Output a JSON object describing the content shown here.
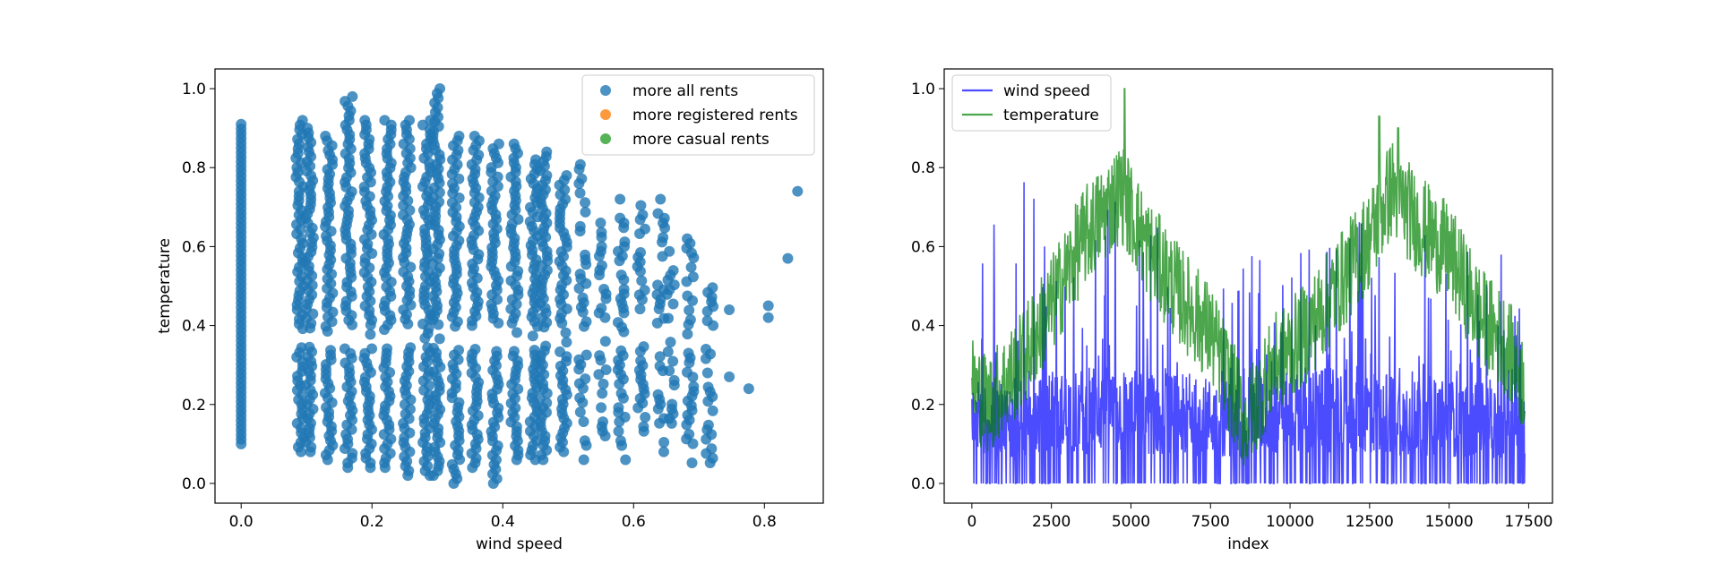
{
  "chart_data": [
    {
      "type": "scatter",
      "title": "",
      "xlabel": "wind speed",
      "ylabel": "temperature",
      "xlim": [
        -0.04,
        0.89
      ],
      "ylim": [
        -0.05,
        1.05
      ],
      "xticks": [
        "0.0",
        "0.2",
        "0.4",
        "0.6",
        "0.8"
      ],
      "yticks": [
        "0.0",
        "0.2",
        "0.4",
        "0.6",
        "0.8",
        "1.0"
      ],
      "legend_position": "top-right",
      "grid": false,
      "series": [
        {
          "name": "more all rents",
          "color": "#1f77b4",
          "columns": [
            {
              "x": 0.0,
              "ymin": 0.1,
              "ymax": 0.91
            },
            {
              "x": 0.0896,
              "ymin": 0.08,
              "ymax": 0.92
            },
            {
              "x": 0.1045,
              "ymin": 0.08,
              "ymax": 0.9
            },
            {
              "x": 0.1343,
              "ymin": 0.06,
              "ymax": 0.88
            },
            {
              "x": 0.1642,
              "ymin": 0.04,
              "ymax": 0.98
            },
            {
              "x": 0.194,
              "ymin": 0.04,
              "ymax": 0.92
            },
            {
              "x": 0.2239,
              "ymin": 0.04,
              "ymax": 0.92
            },
            {
              "x": 0.2537,
              "ymin": 0.02,
              "ymax": 0.92
            },
            {
              "x": 0.2836,
              "ymin": 0.02,
              "ymax": 0.92
            },
            {
              "x": 0.2985,
              "ymin": 0.02,
              "ymax": 1.0
            },
            {
              "x": 0.3284,
              "ymin": 0.0,
              "ymax": 0.88
            },
            {
              "x": 0.3582,
              "ymin": 0.04,
              "ymax": 0.88
            },
            {
              "x": 0.3881,
              "ymin": 0.0,
              "ymax": 0.86
            },
            {
              "x": 0.4179,
              "ymin": 0.06,
              "ymax": 0.86
            },
            {
              "x": 0.4478,
              "ymin": 0.06,
              "ymax": 0.82
            },
            {
              "x": 0.4627,
              "ymin": 0.06,
              "ymax": 0.84
            },
            {
              "x": 0.4925,
              "ymin": 0.08,
              "ymax": 0.78
            },
            {
              "x": 0.5224,
              "ymin": 0.06,
              "ymax": 0.82
            },
            {
              "x": 0.5522,
              "ymin": 0.12,
              "ymax": 0.66
            },
            {
              "x": 0.5821,
              "ymin": 0.06,
              "ymax": 0.72
            },
            {
              "x": 0.6119,
              "ymin": 0.12,
              "ymax": 0.74
            },
            {
              "x": 0.6418,
              "ymin": 0.08,
              "ymax": 0.72
            },
            {
              "x": 0.6567,
              "ymin": 0.14,
              "ymax": 0.6
            },
            {
              "x": 0.6866,
              "ymin": 0.04,
              "ymax": 0.62
            },
            {
              "x": 0.7164,
              "ymin": 0.04,
              "ymax": 0.52
            }
          ],
          "points": [
            [
              0.7463,
              0.44
            ],
            [
              0.7463,
              0.27
            ],
            [
              0.7761,
              0.24
            ],
            [
              0.806,
              0.42
            ],
            [
              0.806,
              0.45
            ],
            [
              0.8358,
              0.57
            ],
            [
              0.8507,
              0.74
            ]
          ]
        },
        {
          "name": "more registered rents",
          "color": "#ff7f0e",
          "points": []
        },
        {
          "name": "more casual rents",
          "color": "#2ca02c",
          "points": []
        }
      ]
    },
    {
      "type": "line",
      "title": "",
      "xlabel": "index",
      "ylabel": "",
      "xlim": [
        -869,
        18248
      ],
      "ylim": [
        -0.05,
        1.05
      ],
      "xticks": [
        "0",
        "2500",
        "5000",
        "7500",
        "10000",
        "12500",
        "15000",
        "17500"
      ],
      "yticks": [
        "0.0",
        "0.2",
        "0.4",
        "0.6",
        "0.8",
        "1.0"
      ],
      "legend_position": "top-left",
      "grid": false,
      "series": [
        {
          "name": "wind speed",
          "color": "#0000ff",
          "alpha": 0.7,
          "x_range": [
            0,
            17379
          ],
          "band": {
            "lower": 0.0,
            "upper_knots": [
              [
                0,
                0.55
              ],
              [
                1500,
                0.8
              ],
              [
                3000,
                0.65
              ],
              [
                5000,
                0.75
              ],
              [
                7000,
                0.55
              ],
              [
                10000,
                0.6
              ],
              [
                12500,
                0.7
              ],
              [
                15000,
                0.6
              ],
              [
                17379,
                0.65
              ]
            ],
            "mid_knots": [
              [
                0,
                0.2
              ],
              [
                4000,
                0.25
              ],
              [
                8000,
                0.22
              ],
              [
                12000,
                0.25
              ],
              [
                17379,
                0.2
              ]
            ]
          }
        },
        {
          "name": "temperature",
          "color": "#008000",
          "alpha": 0.7,
          "x_range": [
            0,
            17379
          ],
          "trend_knots": [
            [
              0,
              0.25
            ],
            [
              500,
              0.2
            ],
            [
              1500,
              0.3
            ],
            [
              2500,
              0.45
            ],
            [
              3500,
              0.62
            ],
            [
              4700,
              0.74
            ],
            [
              5500,
              0.6
            ],
            [
              6500,
              0.48
            ],
            [
              7500,
              0.38
            ],
            [
              8600,
              0.15
            ],
            [
              9500,
              0.3
            ],
            [
              10500,
              0.38
            ],
            [
              11500,
              0.5
            ],
            [
              12500,
              0.62
            ],
            [
              13200,
              0.75
            ],
            [
              14000,
              0.66
            ],
            [
              15000,
              0.58
            ],
            [
              16000,
              0.42
            ],
            [
              16800,
              0.35
            ],
            [
              17379,
              0.25
            ]
          ],
          "amplitude": 0.13,
          "peaks": [
            [
              4800,
              1.0
            ],
            [
              12800,
              0.93
            ],
            [
              13400,
              0.9
            ]
          ]
        }
      ]
    }
  ]
}
